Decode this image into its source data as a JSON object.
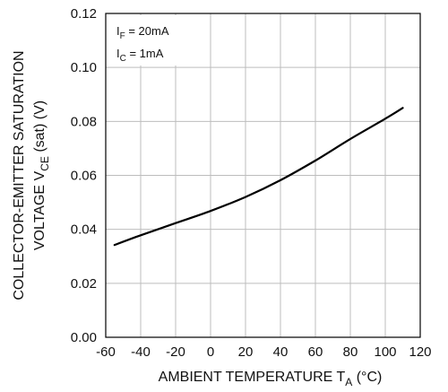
{
  "chart_data": {
    "type": "line",
    "xlabel": {
      "main": "AMBIENT TEMPERATURE T",
      "sub": "A",
      "unit": " (°C)"
    },
    "ylabel": {
      "line1": "COLLECTOR-EMITTER SATURATION",
      "line2_pre": "VOLTAGE V",
      "line2_sub": "CE",
      "line2_post": " (sat) (V)"
    },
    "xlim": [
      -60,
      120
    ],
    "ylim": [
      0.0,
      0.12
    ],
    "x_ticks": [
      "-60",
      "-40",
      "-20",
      "0",
      "20",
      "40",
      "60",
      "80",
      "100",
      "120"
    ],
    "y_ticks": [
      "0.00",
      "0.02",
      "0.04",
      "0.06",
      "0.08",
      "0.10",
      "0.12"
    ],
    "grid": true,
    "annotations": [
      {
        "main": "I",
        "sub": "F",
        "rest": " = 20mA"
      },
      {
        "main": "I",
        "sub": "C",
        "rest": " = 1mA"
      }
    ],
    "series": [
      {
        "x": [
          -55,
          -40,
          -20,
          0,
          20,
          40,
          60,
          80,
          100,
          110
        ],
        "y": [
          0.0342,
          0.0378,
          0.0423,
          0.0468,
          0.052,
          0.0582,
          0.0655,
          0.0735,
          0.081,
          0.085
        ],
        "color": "#000000"
      }
    ]
  }
}
